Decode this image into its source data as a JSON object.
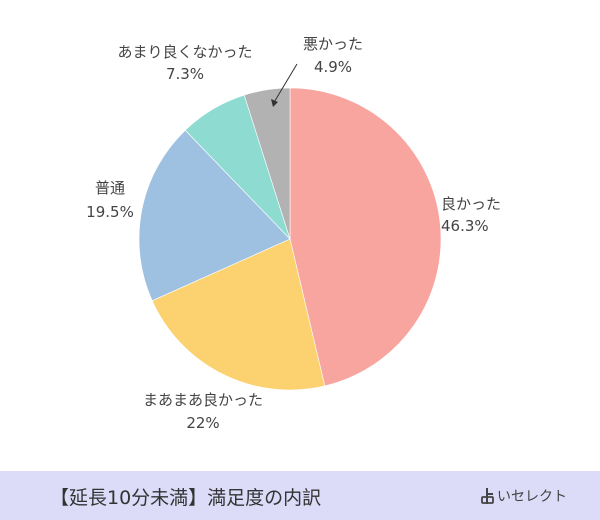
{
  "chart_data": {
    "type": "pie",
    "title": "",
    "slices": [
      {
        "label": "良かった",
        "value": 46.3,
        "value_label": "46.3%",
        "color": "#f8a5a0"
      },
      {
        "label": "まあまあ良かった",
        "value": 22,
        "value_label": "22%",
        "color": "#fbd26f"
      },
      {
        "label": "普通",
        "value": 19.5,
        "value_label": "19.5%",
        "color": "#9fc1e1"
      },
      {
        "label": "あまり良くなかった",
        "value": 7.3,
        "value_label": "7.3%",
        "color": "#8edbd2"
      },
      {
        "label": "悪かった",
        "value": 4.9,
        "value_label": "4.9%",
        "color": "#b2b2b2"
      }
    ],
    "start_angle_deg": 0,
    "direction": "clockwise",
    "legend": "none"
  },
  "footer": {
    "title": "【延長10分未満】満足度の内訳",
    "brand": "いセレクト",
    "brand_icon": "yoi-select-logo-mark",
    "background": "#dcdcf8"
  }
}
